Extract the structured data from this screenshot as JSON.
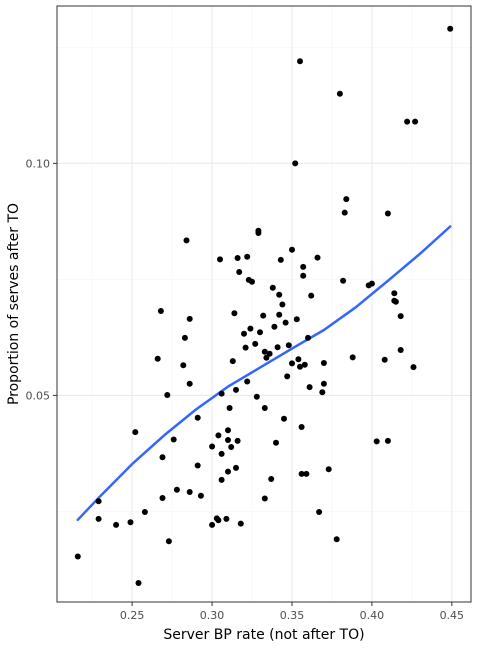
{
  "chart_data": {
    "type": "scatter",
    "xlabel": "Server BP rate (not after TO)",
    "ylabel": "Proportion of serves after TO",
    "xlim": [
      0.203,
      0.462
    ],
    "ylim": [
      0.0055,
      0.1339
    ],
    "x_ticks": [
      0.25,
      0.3,
      0.35,
      0.4,
      0.45
    ],
    "x_tick_labels": [
      "0.25",
      "0.30",
      "0.35",
      "0.40",
      "0.45"
    ],
    "y_ticks": [
      0.05,
      0.1
    ],
    "y_tick_labels": [
      "0.05",
      "0.10"
    ],
    "grid": true,
    "colors": {
      "points": "#000000",
      "smooth_line": "#3366FF",
      "grid_major": "#ebebeb",
      "grid_minor": "#f5f5f5",
      "panel_border": "#333333"
    },
    "points": [
      [
        0.216,
        0.0153
      ],
      [
        0.229,
        0.0272
      ],
      [
        0.229,
        0.0234
      ],
      [
        0.24,
        0.0221
      ],
      [
        0.249,
        0.0227
      ],
      [
        0.252,
        0.0421
      ],
      [
        0.254,
        0.0096
      ],
      [
        0.258,
        0.0249
      ],
      [
        0.266,
        0.0579
      ],
      [
        0.268,
        0.0682
      ],
      [
        0.269,
        0.0279
      ],
      [
        0.269,
        0.0367
      ],
      [
        0.272,
        0.0501
      ],
      [
        0.273,
        0.0186
      ],
      [
        0.276,
        0.0405
      ],
      [
        0.278,
        0.0297
      ],
      [
        0.282,
        0.0565
      ],
      [
        0.283,
        0.0624
      ],
      [
        0.284,
        0.0834
      ],
      [
        0.286,
        0.0665
      ],
      [
        0.286,
        0.0525
      ],
      [
        0.286,
        0.0292
      ],
      [
        0.291,
        0.0452
      ],
      [
        0.291,
        0.0349
      ],
      [
        0.293,
        0.0284
      ],
      [
        0.3,
        0.039
      ],
      [
        0.3,
        0.0221
      ],
      [
        0.303,
        0.0235
      ],
      [
        0.304,
        0.0414
      ],
      [
        0.304,
        0.0231
      ],
      [
        0.305,
        0.0793
      ],
      [
        0.306,
        0.0504
      ],
      [
        0.306,
        0.0318
      ],
      [
        0.306,
        0.0374
      ],
      [
        0.309,
        0.0234
      ],
      [
        0.31,
        0.0425
      ],
      [
        0.31,
        0.0404
      ],
      [
        0.31,
        0.0336
      ],
      [
        0.311,
        0.0473
      ],
      [
        0.312,
        0.0389
      ],
      [
        0.313,
        0.0574
      ],
      [
        0.314,
        0.0677
      ],
      [
        0.315,
        0.0512
      ],
      [
        0.315,
        0.0344
      ],
      [
        0.316,
        0.0402
      ],
      [
        0.316,
        0.0796
      ],
      [
        0.317,
        0.0766
      ],
      [
        0.318,
        0.0224
      ],
      [
        0.32,
        0.0633
      ],
      [
        0.321,
        0.0603
      ],
      [
        0.322,
        0.053
      ],
      [
        0.322,
        0.0799
      ],
      [
        0.323,
        0.0749
      ],
      [
        0.324,
        0.0644
      ],
      [
        0.325,
        0.0745
      ],
      [
        0.327,
        0.0611
      ],
      [
        0.328,
        0.0497
      ],
      [
        0.329,
        0.085
      ],
      [
        0.329,
        0.0855
      ],
      [
        0.33,
        0.0636
      ],
      [
        0.332,
        0.0672
      ],
      [
        0.333,
        0.0594
      ],
      [
        0.333,
        0.0473
      ],
      [
        0.333,
        0.0278
      ],
      [
        0.334,
        0.0581
      ],
      [
        0.336,
        0.059
      ],
      [
        0.337,
        0.032
      ],
      [
        0.338,
        0.0732
      ],
      [
        0.339,
        0.0648
      ],
      [
        0.34,
        0.0398
      ],
      [
        0.341,
        0.0604
      ],
      [
        0.342,
        0.0674
      ],
      [
        0.342,
        0.0717
      ],
      [
        0.343,
        0.0792
      ],
      [
        0.344,
        0.0696
      ],
      [
        0.345,
        0.045
      ],
      [
        0.346,
        0.0657
      ],
      [
        0.347,
        0.0541
      ],
      [
        0.348,
        0.0608
      ],
      [
        0.35,
        0.0814
      ],
      [
        0.35,
        0.0569
      ],
      [
        0.352,
        0.1
      ],
      [
        0.353,
        0.0664
      ],
      [
        0.354,
        0.0578
      ],
      [
        0.355,
        0.122
      ],
      [
        0.355,
        0.0562
      ],
      [
        0.356,
        0.0432
      ],
      [
        0.356,
        0.0331
      ],
      [
        0.357,
        0.0777
      ],
      [
        0.357,
        0.0758
      ],
      [
        0.358,
        0.0566
      ],
      [
        0.359,
        0.0331
      ],
      [
        0.36,
        0.0624
      ],
      [
        0.361,
        0.0518
      ],
      [
        0.362,
        0.0715
      ],
      [
        0.366,
        0.0797
      ],
      [
        0.367,
        0.0249
      ],
      [
        0.369,
        0.0507
      ],
      [
        0.37,
        0.057
      ],
      [
        0.37,
        0.0525
      ],
      [
        0.373,
        0.0341
      ],
      [
        0.378,
        0.019
      ],
      [
        0.38,
        0.115
      ],
      [
        0.382,
        0.0747
      ],
      [
        0.383,
        0.0894
      ],
      [
        0.384,
        0.0923
      ],
      [
        0.388,
        0.0582
      ],
      [
        0.398,
        0.0737
      ],
      [
        0.4,
        0.0741
      ],
      [
        0.403,
        0.0401
      ],
      [
        0.408,
        0.0577
      ],
      [
        0.41,
        0.0892
      ],
      [
        0.41,
        0.0402
      ],
      [
        0.414,
        0.072
      ],
      [
        0.414,
        0.0704
      ],
      [
        0.415,
        0.0702
      ],
      [
        0.418,
        0.0671
      ],
      [
        0.418,
        0.0598
      ],
      [
        0.422,
        0.109
      ],
      [
        0.426,
        0.0561
      ],
      [
        0.427,
        0.109
      ],
      [
        0.449,
        0.129
      ]
    ],
    "smooth_line": {
      "x": [
        0.216,
        0.23,
        0.25,
        0.27,
        0.29,
        0.31,
        0.33,
        0.35,
        0.37,
        0.39,
        0.41,
        0.43,
        0.449
      ],
      "y": [
        0.0232,
        0.0283,
        0.0352,
        0.0414,
        0.047,
        0.0519,
        0.056,
        0.0601,
        0.0641,
        0.069,
        0.0747,
        0.0805,
        0.0864
      ]
    }
  }
}
